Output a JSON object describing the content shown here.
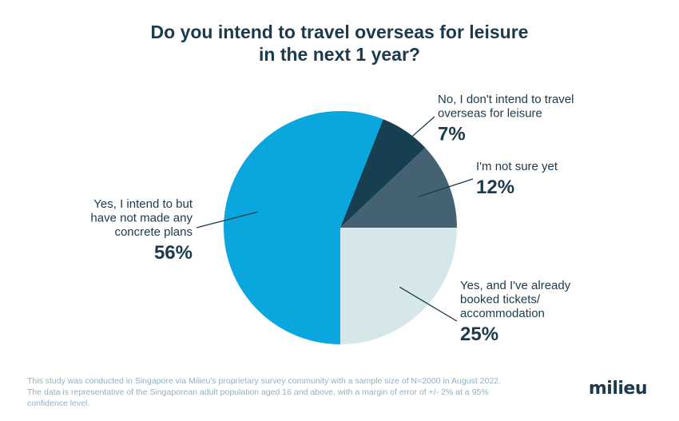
{
  "chart_data": {
    "type": "pie",
    "title_lines": [
      "Do you intend to travel overseas for leisure",
      "in the next 1 year?"
    ],
    "slices": [
      {
        "label_lines": [
          "Yes, and I've already",
          "booked tickets/",
          "accommodation"
        ],
        "value": 25,
        "value_label": "25%",
        "color": "#d6e7ea"
      },
      {
        "label_lines": [
          "Yes, I intend to but",
          "have not made any",
          "concrete plans"
        ],
        "value": 56,
        "value_label": "56%",
        "color": "#0aa7df"
      },
      {
        "label_lines": [
          "No, I don't intend to travel",
          "overseas for leisure"
        ],
        "value": 7,
        "value_label": "7%",
        "color": "#173f52"
      },
      {
        "label_lines": [
          "I'm not sure yet"
        ],
        "value": 12,
        "value_label": "12%",
        "color": "#456272"
      }
    ]
  },
  "footnote": "This study was conducted in Singapore via Milieu's proprietary survey community with a sample size of N=2000 in August 2022. The data is representative of the Singaporean adult population aged 16 and above, with a margin of error of +/- 2% at a 95% confidence level.",
  "logo_text": "milieu",
  "colors": {
    "text": "#1b3a4b",
    "footnote": "#8fb3c4"
  }
}
